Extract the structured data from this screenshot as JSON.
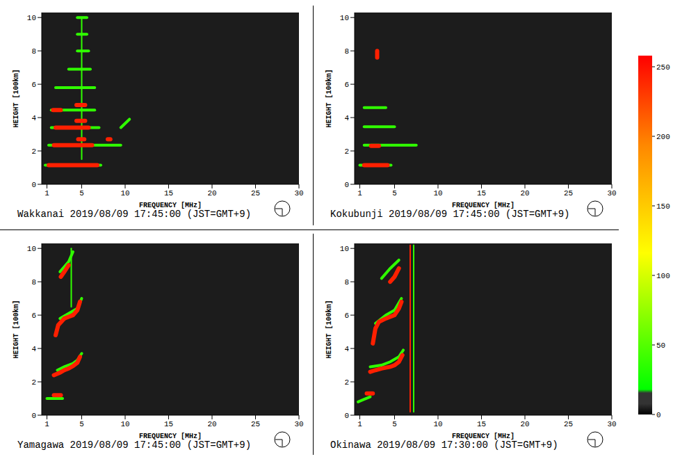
{
  "chart_data": [
    {
      "type": "line",
      "title": "Wakkanai 2019/08/09 17:45:00 (JST=GMT+9)",
      "xlabel": "FREQUENCY [MHz]",
      "ylabel": "HEIGHT [100km]",
      "xlim": [
        0.4,
        30
      ],
      "xticks": [
        1,
        5,
        10,
        15,
        20,
        25,
        30
      ],
      "ylim": [
        0,
        10.3
      ],
      "yticks": [
        0,
        2,
        4,
        6,
        8,
        10
      ],
      "series": [
        {
          "color": "#30ff00",
          "x": [
            0.8,
            7.2
          ],
          "values": [
            1.15,
            1.15
          ]
        },
        {
          "color": "#30ff00",
          "x": [
            1.2,
            9.5
          ],
          "values": [
            2.35,
            2.35
          ]
        },
        {
          "color": "#30ff00",
          "x": [
            1.5,
            7.0
          ],
          "values": [
            3.4,
            3.4
          ]
        },
        {
          "color": "#30ff00",
          "x": [
            1.5,
            6.5
          ],
          "values": [
            4.45,
            4.45
          ]
        },
        {
          "color": "#30ff00",
          "x": [
            2.0,
            6.5
          ],
          "values": [
            5.8,
            5.8
          ]
        },
        {
          "color": "#30ff00",
          "x": [
            3.5,
            6.0
          ],
          "values": [
            6.9,
            6.9
          ]
        },
        {
          "color": "#30ff00",
          "x": [
            4.5,
            5.8
          ],
          "values": [
            8.0,
            8.0
          ]
        },
        {
          "color": "#30ff00",
          "x": [
            4.5,
            5.6
          ],
          "values": [
            9.0,
            9.0
          ]
        },
        {
          "color": "#30ff00",
          "x": [
            4.5,
            5.6
          ],
          "values": [
            10.0,
            10.0
          ]
        },
        {
          "color": "#30ff00",
          "x": [
            9.5,
            10.5
          ],
          "values": [
            3.4,
            3.9
          ]
        },
        {
          "color": "#30ff00",
          "x": [
            5,
            5
          ],
          "values": [
            1.5,
            10.0
          ],
          "line_style": "thin"
        },
        {
          "color": "#ff2000",
          "x": [
            1.2,
            6.8
          ],
          "values": [
            1.15,
            1.15
          ]
        },
        {
          "color": "#ff2000",
          "x": [
            1.8,
            6.2
          ],
          "values": [
            2.35,
            2.35
          ]
        },
        {
          "color": "#ff2000",
          "x": [
            2.0,
            5.8
          ],
          "values": [
            3.4,
            3.4
          ]
        },
        {
          "color": "#ff2000",
          "x": [
            1.7,
            2.6
          ],
          "values": [
            4.45,
            4.45
          ]
        },
        {
          "color": "#ff2000",
          "x": [
            4.4,
            5.4
          ],
          "values": [
            4.75,
            4.75
          ]
        },
        {
          "color": "#ff2000",
          "x": [
            4.4,
            5.4
          ],
          "values": [
            3.8,
            3.8
          ]
        },
        {
          "color": "#ff2000",
          "x": [
            4.6,
            5.3
          ],
          "values": [
            2.7,
            2.7
          ]
        },
        {
          "color": "#ff2000",
          "x": [
            8.0,
            8.3
          ],
          "values": [
            2.7,
            2.7
          ]
        }
      ]
    },
    {
      "type": "line",
      "title": "Kokubunji 2019/08/09 17:45:00 (JST=GMT+9)",
      "xlabel": "FREQUENCY [MHz]",
      "ylabel": "HEIGHT [100km]",
      "xlim": [
        0.4,
        30
      ],
      "xticks": [
        1,
        5,
        10,
        15,
        20,
        25,
        30
      ],
      "ylim": [
        0,
        10.3
      ],
      "yticks": [
        0,
        2,
        4,
        6,
        8,
        10
      ],
      "series": [
        {
          "color": "#30ff00",
          "x": [
            1.0,
            4.6
          ],
          "values": [
            1.15,
            1.15
          ]
        },
        {
          "color": "#30ff00",
          "x": [
            1.5,
            7.5
          ],
          "values": [
            2.35,
            2.35
          ]
        },
        {
          "color": "#30ff00",
          "x": [
            1.5,
            5.0
          ],
          "values": [
            3.45,
            3.45
          ]
        },
        {
          "color": "#30ff00",
          "x": [
            1.5,
            4.0
          ],
          "values": [
            4.6,
            4.6
          ]
        },
        {
          "color": "#ff2000",
          "x": [
            1.5,
            4.2
          ],
          "values": [
            1.15,
            1.15
          ]
        },
        {
          "color": "#ff2000",
          "x": [
            2.3,
            3.2
          ],
          "values": [
            2.3,
            2.3
          ]
        },
        {
          "color": "#ff2000",
          "x": [
            3,
            3
          ],
          "values": [
            7.6,
            8.0
          ]
        }
      ]
    },
    {
      "type": "line",
      "title": "Yamagawa 2019/08/09 17:45:00 (JST=GMT+9)",
      "xlabel": "FREQUENCY [MHz]",
      "ylabel": "HEIGHT [100km]",
      "xlim": [
        0.4,
        30
      ],
      "xticks": [
        1,
        5,
        10,
        15,
        20,
        25,
        30
      ],
      "ylim": [
        0,
        10.3
      ],
      "yticks": [
        0,
        2,
        4,
        6,
        8,
        10
      ],
      "series": [
        {
          "color": "#30ff00",
          "x": [
            1.0,
            2.8
          ],
          "values": [
            1.0,
            1.0
          ]
        },
        {
          "color": "#30ff00",
          "x": [
            2.2,
            3,
            4,
            4.5,
            5
          ],
          "values": [
            2.7,
            2.9,
            3.1,
            3.3,
            3.7
          ]
        },
        {
          "color": "#30ff00",
          "x": [
            2.5,
            3.5,
            4.5,
            5
          ],
          "values": [
            5.8,
            6.1,
            6.4,
            7.0
          ]
        },
        {
          "color": "#30ff00",
          "x": [
            2.5,
            3.5,
            4
          ],
          "values": [
            8.6,
            9.2,
            9.8
          ]
        },
        {
          "color": "#30ff00",
          "x": [
            3.8,
            3.8
          ],
          "values": [
            6.5,
            10.0
          ],
          "line_style": "thin"
        },
        {
          "color": "#ff2000",
          "x": [
            1.8,
            2.6
          ],
          "values": [
            1.2,
            1.2
          ]
        },
        {
          "color": "#ff2000",
          "x": [
            1.8,
            2.5,
            3,
            3.5,
            4,
            4.5,
            4.8
          ],
          "values": [
            2.4,
            2.55,
            2.7,
            2.8,
            2.95,
            3.15,
            3.5
          ]
        },
        {
          "color": "#ff2000",
          "x": [
            2.0,
            2.3,
            3,
            3.5,
            4,
            4.5,
            4.8
          ],
          "values": [
            4.8,
            5.4,
            5.8,
            5.9,
            6.0,
            6.3,
            6.8
          ]
        },
        {
          "color": "#ff2000",
          "x": [
            2.6,
            3,
            3.5
          ],
          "values": [
            8.3,
            8.6,
            9.0
          ]
        }
      ]
    },
    {
      "type": "line",
      "title": "Okinawa 2019/08/09 17:30:00 (JST=GMT+9)",
      "xlabel": "FREQUENCY [MHz]",
      "ylabel": "HEIGHT [100km]",
      "xlim": [
        0.4,
        30
      ],
      "xticks": [
        1,
        5,
        10,
        15,
        20,
        25,
        30
      ],
      "ylim": [
        0,
        10.3
      ],
      "yticks": [
        0,
        2,
        4,
        6,
        8,
        10
      ],
      "series": [
        {
          "color": "#30ff00",
          "x": [
            0.8,
            1.5,
            2.2
          ],
          "values": [
            0.8,
            0.95,
            1.1
          ]
        },
        {
          "color": "#30ff00",
          "x": [
            2.2,
            3.5,
            4.5,
            5.5,
            6
          ],
          "values": [
            2.9,
            3.0,
            3.2,
            3.5,
            3.9
          ]
        },
        {
          "color": "#30ff00",
          "x": [
            2.8,
            4,
            5,
            5.8
          ],
          "values": [
            5.5,
            6.0,
            6.3,
            7.0
          ]
        },
        {
          "color": "#30ff00",
          "x": [
            3.5,
            4.5,
            5.5
          ],
          "values": [
            8.2,
            8.8,
            9.3
          ]
        },
        {
          "color": "#30ff00",
          "x": [
            7.2,
            7.2
          ],
          "values": [
            0.2,
            10.2
          ],
          "line_style": "thin"
        },
        {
          "color": "#ff2000",
          "x": [
            1.8,
            2.5
          ],
          "values": [
            1.3,
            1.3
          ]
        },
        {
          "color": "#ff2000",
          "x": [
            2.2,
            2.8,
            3.5,
            4,
            4.5,
            5,
            5.5,
            5.9
          ],
          "values": [
            2.6,
            2.7,
            2.8,
            2.85,
            2.9,
            3.0,
            3.2,
            3.6
          ]
        },
        {
          "color": "#ff2000",
          "x": [
            2.5,
            2.8,
            3.2,
            4,
            5,
            5.5,
            5.8
          ],
          "values": [
            4.3,
            5.2,
            5.6,
            5.8,
            6.0,
            6.4,
            6.8
          ]
        },
        {
          "color": "#ff2000",
          "x": [
            4.5,
            5,
            5.5
          ],
          "values": [
            8.0,
            8.3,
            8.8
          ]
        },
        {
          "color": "#ff2000",
          "x": [
            6.8,
            6.8
          ],
          "values": [
            0.2,
            10.2
          ],
          "line_style": "thin"
        }
      ]
    }
  ],
  "colorbar": {
    "range": [
      0,
      258
    ],
    "ticks": [
      0,
      50,
      100,
      150,
      200,
      250
    ]
  }
}
